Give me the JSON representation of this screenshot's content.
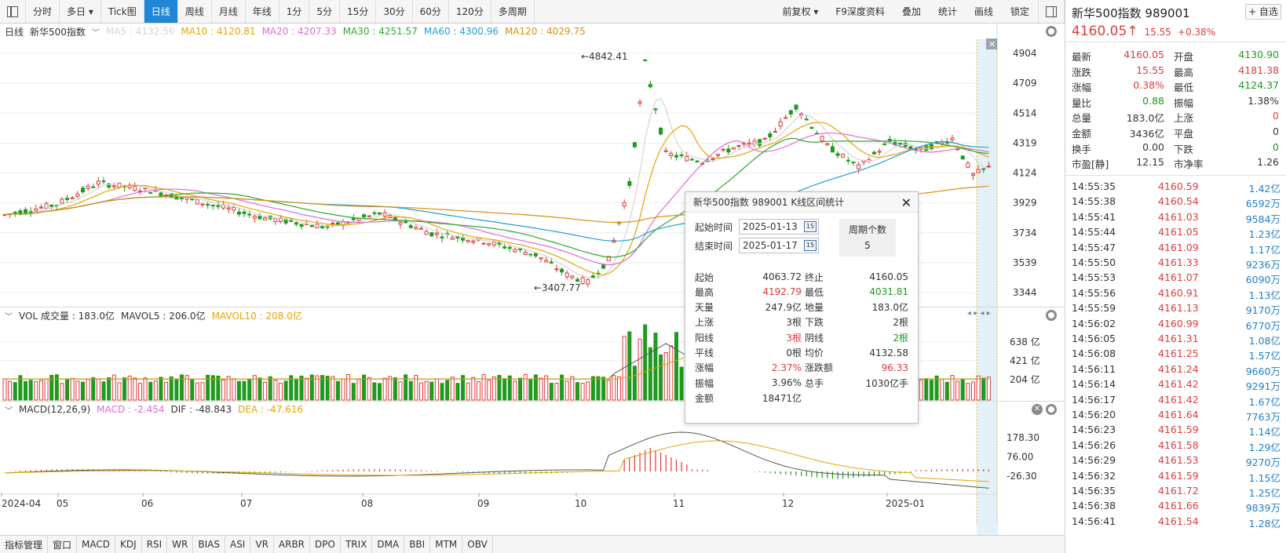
{
  "toolbar": {
    "left_buttons": [
      "分时",
      "多日",
      "Tick图",
      "日线",
      "周线",
      "月线",
      "年线",
      "1分",
      "5分",
      "15分",
      "30分",
      "60分",
      "120分",
      "多周期"
    ],
    "active": "日线",
    "right_buttons": [
      "前复权",
      "F9深度资料",
      "叠加",
      "统计",
      "画线",
      "锁定"
    ]
  },
  "kline_legend": {
    "period": "日线",
    "name": "新华500指数",
    "ma5": "MA5 : 4132.56",
    "ma10": "MA10 : 4120.81",
    "ma20": "MA20 : 4207.33",
    "ma30": "MA30 : 4251.57",
    "ma60": "MA60 : 4300.96",
    "ma120": "MA120 : 4029.75"
  },
  "vol_legend": {
    "label": "VOL 成交量 : 183.0亿",
    "mavol5": "MAVOL5 : 206.0亿",
    "mavol10": "MAVOL10 : 208.0亿"
  },
  "macd_legend": {
    "label": "MACD(12,26,9)",
    "macd": "MACD : -2.454",
    "dif": "DIF : -48.843",
    "dea": "DEA : -47.616"
  },
  "price_axis": [
    "4904",
    "4709",
    "4514",
    "4319",
    "4124",
    "3929",
    "3734",
    "3539",
    "3344"
  ],
  "vol_axis": [
    "638 亿",
    "421 亿",
    "204 亿"
  ],
  "macd_axis": [
    "178.30",
    "76.00",
    "-26.30"
  ],
  "annotations": {
    "high": "←4842.41",
    "low": "←3407.77"
  },
  "x_labels": [
    "2024-04",
    "05",
    "06",
    "07",
    "08",
    "09",
    "10",
    "11",
    "12",
    "2025-01"
  ],
  "indicator_tabs": [
    "指标管理",
    "窗口",
    "MACD",
    "KDJ",
    "RSI",
    "WR",
    "BIAS",
    "ASI",
    "VR",
    "ARBR",
    "DPO",
    "TRIX",
    "DMA",
    "BBI",
    "MTM",
    "OBV"
  ],
  "colors": {
    "up": "#e03a3a",
    "down": "#1e9a1e",
    "ma5": "#d4d4d4",
    "ma10": "#e6a400",
    "ma20": "#e06ad6",
    "ma30": "#2fa82f",
    "ma60": "#1fa0d6",
    "ma120": "#d9900f",
    "dif": "#555555",
    "dea": "#e6a400",
    "macdlab": "#e06ad6"
  },
  "popup": {
    "title": "新华500指数 989001 K线区间统计",
    "start_label": "起始时间",
    "start_date": "2025-01-13",
    "end_label": "结束时间",
    "end_date": "2025-01-17",
    "count_label": "周期个数",
    "count_value": "5",
    "stats": [
      {
        "k": "起始",
        "v": "4063.72",
        "k2": "终止",
        "v2": "4160.05",
        "c": "",
        "c2": ""
      },
      {
        "k": "最高",
        "v": "4192.79",
        "k2": "最低",
        "v2": "4031.81",
        "c": "up",
        "c2": "down"
      },
      {
        "k": "天量",
        "v": "247.9亿",
        "k2": "地量",
        "v2": "183.0亿",
        "c": "",
        "c2": ""
      },
      {
        "k": "上涨",
        "v": "3根",
        "k2": "下跌",
        "v2": "2根",
        "c": "",
        "c2": ""
      },
      {
        "k": "阳线",
        "v": "3根",
        "k2": "阴线",
        "v2": "2根",
        "c": "up",
        "c2": "down"
      },
      {
        "k": "平线",
        "v": "0根",
        "k2": "均价",
        "v2": "4132.58",
        "c": "",
        "c2": ""
      },
      {
        "k": "涨幅",
        "v": "2.37%",
        "k2": "涨跌额",
        "v2": "96.33",
        "c": "up",
        "c2": "up"
      },
      {
        "k": "振幅",
        "v": "3.96%",
        "k2": "总手",
        "v2": "1030亿手",
        "c": "",
        "c2": ""
      },
      {
        "k": "金额",
        "v": "18471亿",
        "k2": "",
        "v2": "",
        "c": "",
        "c2": ""
      }
    ]
  },
  "quote": {
    "title": "新华500指数  989001",
    "add_label": "+ 自选",
    "price": "4160.05",
    "arrow": "↑",
    "change": "15.55",
    "pct": "+0.38%",
    "rows": [
      {
        "k": "最新",
        "v": "4160.05",
        "c": "up",
        "k2": "开盘",
        "v2": "4130.90",
        "c2": "down"
      },
      {
        "k": "涨跌",
        "v": "15.55",
        "c": "up",
        "k2": "最高",
        "v2": "4181.38",
        "c2": "up"
      },
      {
        "k": "涨幅",
        "v": "0.38%",
        "c": "up",
        "k2": "最低",
        "v2": "4124.37",
        "c2": "down"
      },
      {
        "k": "量比",
        "v": "0.88",
        "c": "down",
        "k2": "振幅",
        "v2": "1.38%",
        "c2": ""
      },
      {
        "k": "总量",
        "v": "183.0亿",
        "c": "",
        "k2": "上涨",
        "v2": "0",
        "c2": "up"
      },
      {
        "k": "金额",
        "v": "3436亿",
        "c": "",
        "k2": "平盘",
        "v2": "0",
        "c2": ""
      },
      {
        "k": "换手",
        "v": "0.00",
        "c": "",
        "k2": "下跌",
        "v2": "0",
        "c2": "down"
      },
      {
        "k": "市盈[静]",
        "v": "12.15",
        "c": "",
        "k2": "市净率",
        "v2": "1.26",
        "c2": ""
      }
    ]
  },
  "ticks": [
    {
      "t": "14:55:35",
      "p": "4160.59",
      "v": "1.42亿"
    },
    {
      "t": "14:55:38",
      "p": "4160.54",
      "v": "6592万"
    },
    {
      "t": "14:55:41",
      "p": "4161.03",
      "v": "9584万"
    },
    {
      "t": "14:55:44",
      "p": "4161.05",
      "v": "1.23亿"
    },
    {
      "t": "14:55:47",
      "p": "4161.09",
      "v": "1.17亿"
    },
    {
      "t": "14:55:50",
      "p": "4161.33",
      "v": "9236万"
    },
    {
      "t": "14:55:53",
      "p": "4161.07",
      "v": "6090万"
    },
    {
      "t": "14:55:56",
      "p": "4160.91",
      "v": "1.13亿"
    },
    {
      "t": "14:55:59",
      "p": "4161.13",
      "v": "9170万"
    },
    {
      "t": "14:56:02",
      "p": "4160.99",
      "v": "6770万"
    },
    {
      "t": "14:56:05",
      "p": "4161.31",
      "v": "1.08亿"
    },
    {
      "t": "14:56:08",
      "p": "4161.25",
      "v": "1.57亿"
    },
    {
      "t": "14:56:11",
      "p": "4161.24",
      "v": "9660万"
    },
    {
      "t": "14:56:14",
      "p": "4161.42",
      "v": "9291万"
    },
    {
      "t": "14:56:17",
      "p": "4161.42",
      "v": "1.67亿"
    },
    {
      "t": "14:56:20",
      "p": "4161.64",
      "v": "7763万"
    },
    {
      "t": "14:56:23",
      "p": "4161.59",
      "v": "1.14亿"
    },
    {
      "t": "14:56:26",
      "p": "4161.58",
      "v": "1.29亿"
    },
    {
      "t": "14:56:29",
      "p": "4161.53",
      "v": "9270万"
    },
    {
      "t": "14:56:32",
      "p": "4161.59",
      "v": "1.15亿"
    },
    {
      "t": "14:56:35",
      "p": "4161.72",
      "v": "1.25亿"
    },
    {
      "t": "14:56:38",
      "p": "4161.66",
      "v": "9839万"
    },
    {
      "t": "14:56:41",
      "p": "4161.54",
      "v": "1.28亿"
    }
  ]
}
